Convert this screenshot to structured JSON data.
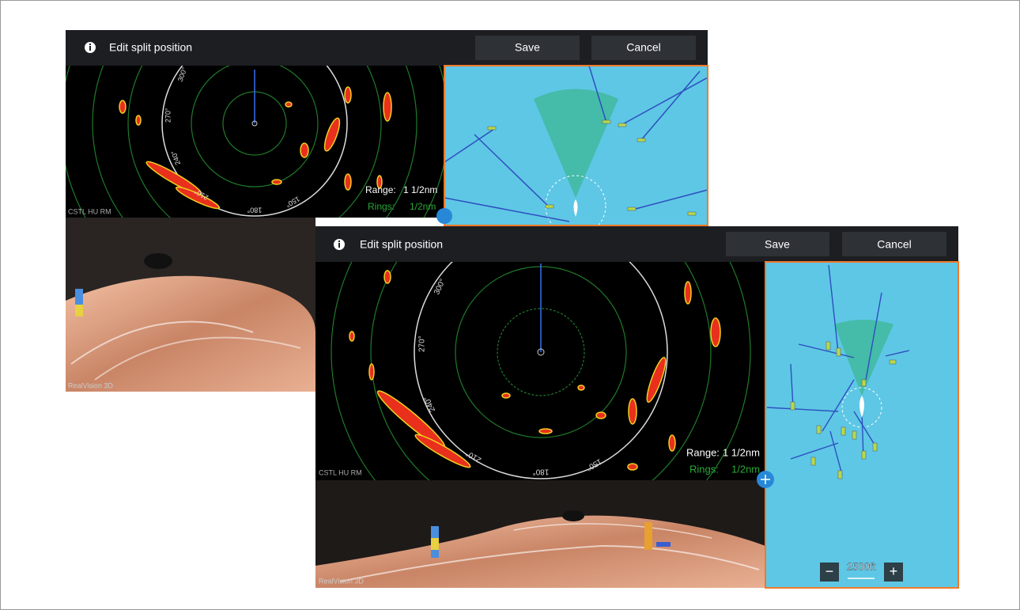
{
  "screens": [
    {
      "toolbar": {
        "title": "Edit split position",
        "save": "Save",
        "cancel": "Cancel"
      },
      "radar": {
        "range_label": "Range:",
        "range": "1 1/2nm",
        "rings_label": "Rings:",
        "rings": "1/2nm",
        "mode": "CSTL HU RM",
        "bearings": [
          "300°",
          "270°",
          "240°",
          "210°",
          "180°",
          "150°"
        ]
      },
      "sonar": {
        "label": "RealVision 3D"
      }
    },
    {
      "toolbar": {
        "title": "Edit split position",
        "save": "Save",
        "cancel": "Cancel"
      },
      "radar": {
        "range_label": "Range:",
        "range": "1 1/2nm",
        "rings_label": "Rings:",
        "rings": "1/2nm",
        "mode": "CSTL HU RM",
        "bearings": [
          "300°",
          "270°",
          "240°",
          "210°",
          "180°",
          "150°"
        ]
      },
      "sonar": {
        "label": "RealVision 3D"
      },
      "chart": {
        "scale": "2500ft",
        "zoom_out": "−",
        "zoom_in": "+"
      }
    }
  ]
}
